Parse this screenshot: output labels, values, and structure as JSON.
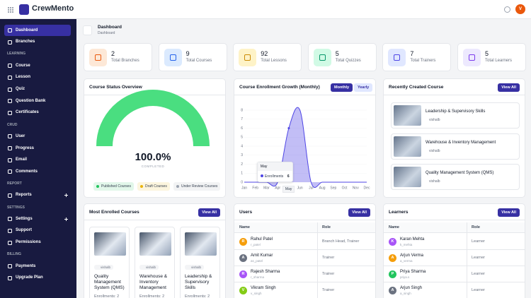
{
  "app": {
    "brand": "CrewMento",
    "avatar": "V"
  },
  "sidebar": {
    "groups": [
      {
        "items": [
          {
            "label": "Dashboard",
            "active": true
          },
          {
            "label": "Branches"
          }
        ]
      },
      {
        "heading": "LEARNING",
        "items": [
          {
            "label": "Course"
          },
          {
            "label": "Lesson"
          },
          {
            "label": "Quiz"
          },
          {
            "label": "Question Bank"
          },
          {
            "label": "Certificates"
          }
        ]
      },
      {
        "heading": "CRUD",
        "items": [
          {
            "label": "User"
          },
          {
            "label": "Progress"
          },
          {
            "label": "Email"
          },
          {
            "label": "Comments"
          }
        ]
      },
      {
        "heading": "REPORT",
        "items": [
          {
            "label": "Reports",
            "expandable": true
          }
        ]
      },
      {
        "heading": "SETTINGS",
        "items": [
          {
            "label": "Settings",
            "expandable": true
          },
          {
            "label": "Support"
          },
          {
            "label": "Permissions"
          }
        ]
      },
      {
        "heading": "BILLING",
        "items": [
          {
            "label": "Payments"
          },
          {
            "label": "Upgrade Plan"
          }
        ]
      }
    ]
  },
  "header": {
    "title": "Dashboard",
    "breadcrumb": "Dashboard"
  },
  "stats": [
    {
      "value": 2,
      "label": "Total Branches"
    },
    {
      "value": 9,
      "label": "Total Courses"
    },
    {
      "value": 92,
      "label": "Total Lessons"
    },
    {
      "value": 5,
      "label": "Total Quizzes"
    },
    {
      "value": 7,
      "label": "Total Trainers"
    },
    {
      "value": 5,
      "label": "Total Learners"
    }
  ],
  "course_status": {
    "title": "Course Status Overview",
    "value": 100,
    "value_label": "100.0%",
    "caption": "COMPLETED",
    "color": "#4ade80",
    "legend": [
      {
        "name": "Published Courses",
        "color": "#22c55e"
      },
      {
        "name": "Draft Courses",
        "color": "#eab308"
      },
      {
        "name": "Under Review Courses",
        "color": "#9ca3af"
      }
    ]
  },
  "chart_data": {
    "type": "line",
    "title": "Course Enrollment Growth (Monthly)",
    "toggle": [
      "Monthly",
      "Yearly"
    ],
    "categories": [
      "Jan",
      "Feb",
      "Mar",
      "Apr",
      "May",
      "Jun",
      "Jul",
      "Aug",
      "Sep",
      "Oct",
      "Nov",
      "Dec"
    ],
    "series": [
      {
        "name": "Enrollments",
        "color": "#4f46e5",
        "values": [
          0,
          0,
          0,
          0,
          6,
          8,
          0,
          0,
          0,
          0,
          0,
          0
        ]
      }
    ],
    "ylim": [
      0,
      8
    ],
    "yticks": [
      0,
      1,
      2,
      3,
      4,
      5,
      6,
      7,
      8
    ],
    "tooltip": {
      "category": "May"
    }
  },
  "recent_courses": {
    "title": "Recently Created Course",
    "button": "View All",
    "items": [
      {
        "title": "Leadership & Supervisory Skills",
        "author": "vishalb"
      },
      {
        "title": "Warehouse & Inventory Management",
        "author": "vishalb"
      },
      {
        "title": "Quality Management System (QMS)",
        "author": "vishalb"
      }
    ]
  },
  "most_enrolled": {
    "title": "Most Enrolled Courses",
    "button": "View All",
    "items": [
      {
        "title": "Quality Management System (QMS)",
        "author": "vishalb",
        "enrollments": "Enrollments: 2"
      },
      {
        "title": "Warehouse & Inventory Management",
        "author": "vishalb",
        "enrollments": "Enrollments: 2"
      },
      {
        "title": "Leadership & Supervisory Skills",
        "author": "vishalb",
        "enrollments": "Enrollments: 2"
      }
    ]
  },
  "users": {
    "title": "Users",
    "button": "View All",
    "columns": [
      "Name",
      "Role"
    ],
    "rows": [
      {
        "initial": "R",
        "color": "#f59e0b",
        "name": "Rahul Patel",
        "username": "r_patel",
        "role": "Branch Head, Trainer"
      },
      {
        "initial": "A",
        "color": "#6b7280",
        "name": "Amit Kumar",
        "username": "as_patel",
        "role": "Trainer"
      },
      {
        "initial": "R",
        "color": "#a855f7",
        "name": "Rajesh Sharma",
        "username": "r_sharma",
        "role": "Trainer"
      },
      {
        "initial": "V",
        "color": "#84cc16",
        "name": "Vikram Singh",
        "username": "v_singh",
        "role": "Trainer"
      }
    ]
  },
  "learners": {
    "title": "Learners",
    "button": "View All",
    "columns": [
      "Name",
      "Role"
    ],
    "rows": [
      {
        "initial": "K",
        "color": "#a855f7",
        "name": "Karan Mehta",
        "username": "k_mehta",
        "role": "Learner"
      },
      {
        "initial": "A",
        "color": "#f59e0b",
        "name": "Arjun Verma",
        "username": "a_verma",
        "role": "Learner"
      },
      {
        "initial": "P",
        "color": "#22c55e",
        "name": "Priya Sharma",
        "username": "priya.s",
        "role": "Learner"
      },
      {
        "initial": "A",
        "color": "#6b7280",
        "name": "Arjun Singh",
        "username": "a_singh",
        "role": "Learner"
      }
    ]
  }
}
